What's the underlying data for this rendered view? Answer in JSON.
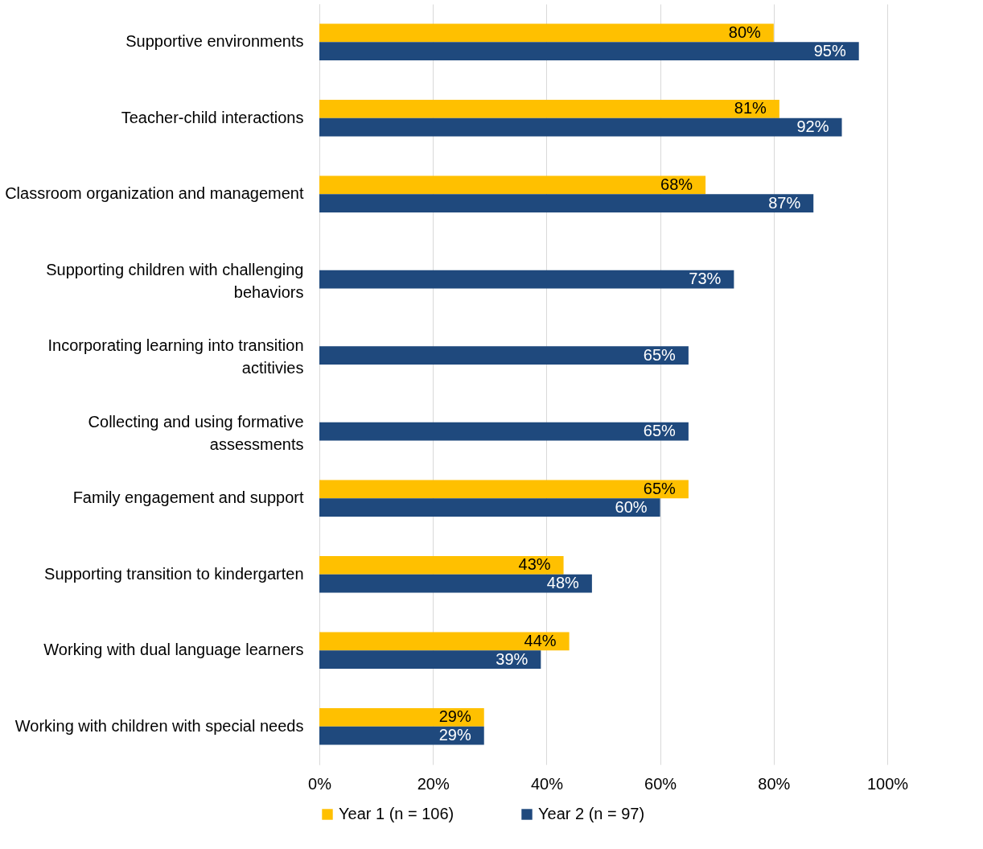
{
  "chart_data": {
    "type": "bar",
    "orientation": "horizontal",
    "categories": [
      "Supportive environments",
      "Teacher-child interactions",
      "Classroom organization and management",
      "Supporting children with challenging behaviors",
      "Incorporating learning into transition actitivies",
      "Collecting and using formative assessments",
      "Family engagement and support",
      "Supporting transition to kindergarten",
      "Working with dual language learners",
      "Working with children with special needs"
    ],
    "series": [
      {
        "name": "Year 1 (n = 106)",
        "color": "#ffc000",
        "values": [
          80,
          81,
          68,
          null,
          null,
          null,
          65,
          43,
          44,
          29
        ],
        "value_labels": [
          "80%",
          "81%",
          "68%",
          null,
          null,
          null,
          "65%",
          "43%",
          "44%",
          "29%"
        ]
      },
      {
        "name": "Year 2 (n = 97)",
        "color": "#1f497d",
        "values": [
          95,
          92,
          87,
          73,
          65,
          65,
          60,
          48,
          39,
          29
        ],
        "value_labels": [
          "95%",
          "92%",
          "87%",
          "73%",
          "65%",
          "65%",
          "60%",
          "48%",
          "39%",
          "29%"
        ]
      }
    ],
    "xlim": [
      0,
      100
    ],
    "xticks": [
      {
        "value": 0,
        "label": "0%"
      },
      {
        "value": 20,
        "label": "20%"
      },
      {
        "value": 40,
        "label": "40%"
      },
      {
        "value": 60,
        "label": "60%"
      },
      {
        "value": 80,
        "label": "80%"
      },
      {
        "value": 100,
        "label": "100%"
      }
    ],
    "grid": "x",
    "legend": "bottom"
  }
}
